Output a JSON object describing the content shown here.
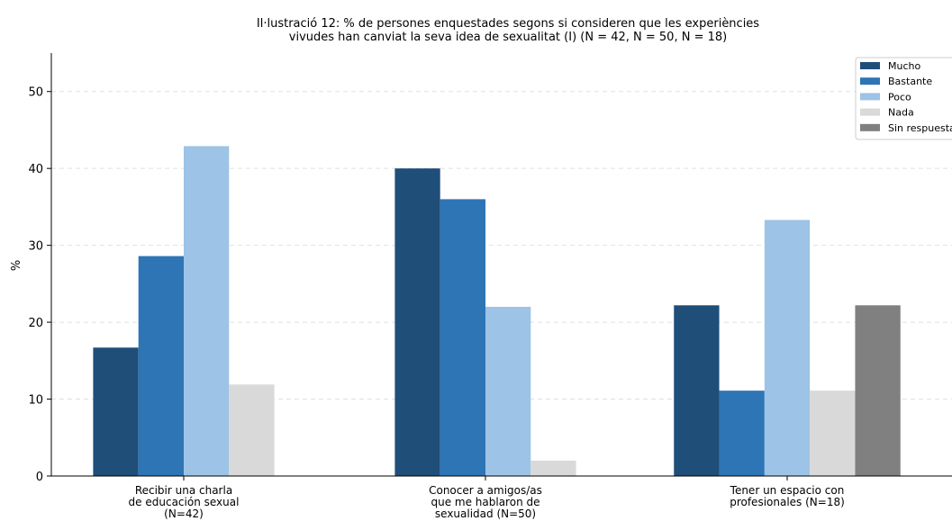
{
  "chart_data": {
    "type": "bar",
    "title": "Il·lustració 12: % de persones enquestades segons si consideren que les experiències\nvivudes han canviat la seva idea de sexualitat (I) (N = 42, N = 50, N = 18)",
    "ylabel": "%",
    "xlabel": "",
    "ylim": [
      0,
      55
    ],
    "yticks": [
      0,
      10,
      20,
      30,
      40,
      50
    ],
    "grid": true,
    "legend_position": "top-right",
    "categories": [
      "Recibir una charla\nde educación sexual\n(N=42)",
      "Conocer a amigos/as\nque me hablaron de\nsexualidad (N=50)",
      "Tener un espacio con\nprofesionales (N=18)"
    ],
    "series": [
      {
        "name": "Mucho",
        "color": "#1f4e79",
        "values": [
          16.7,
          40.0,
          22.2
        ]
      },
      {
        "name": "Bastante",
        "color": "#2e75b6",
        "values": [
          28.6,
          36.0,
          11.1
        ]
      },
      {
        "name": "Poco",
        "color": "#9dc3e6",
        "values": [
          42.9,
          22.0,
          33.3
        ]
      },
      {
        "name": "Nada",
        "color": "#d9d9d9",
        "values": [
          11.9,
          2.0,
          11.1
        ]
      },
      {
        "name": "Sin respuesta",
        "color": "#808080",
        "values": [
          0,
          0,
          22.2
        ]
      }
    ]
  }
}
